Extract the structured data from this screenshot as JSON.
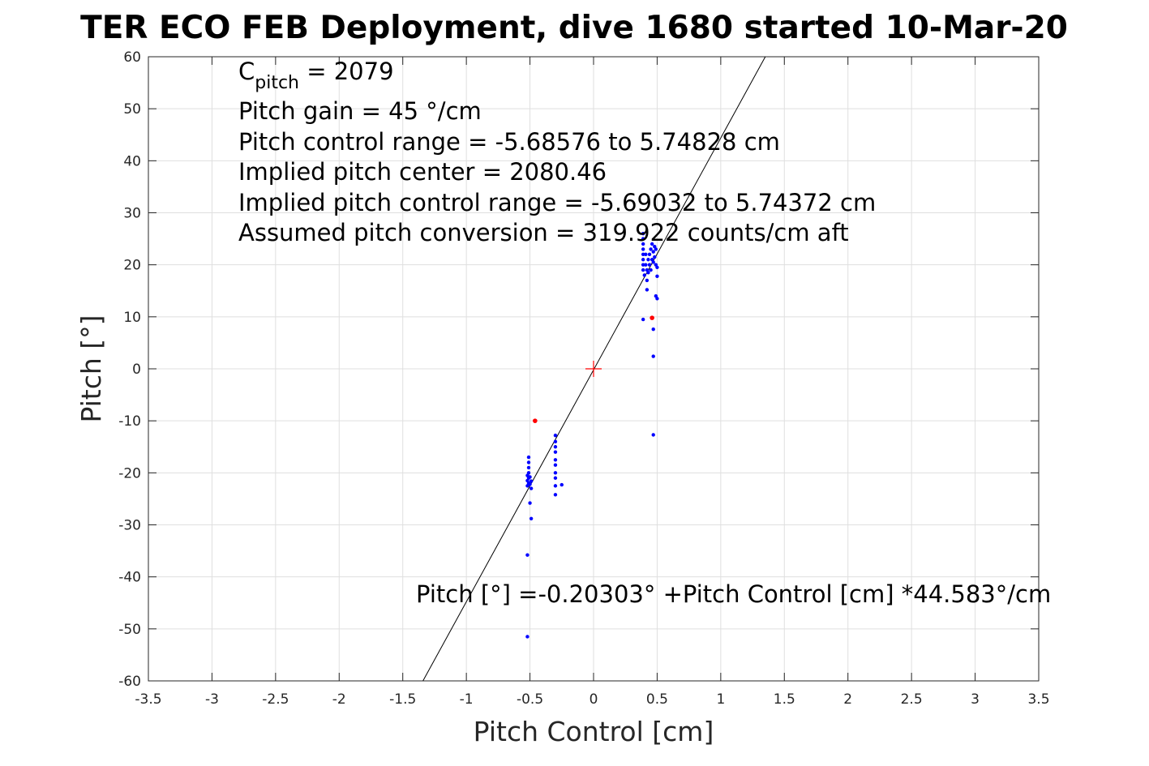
{
  "chart_data": {
    "type": "scatter",
    "title": "TER ECO FEB Deployment, dive 1680 started 10-Mar-20",
    "xlabel": "Pitch Control [cm]",
    "ylabel": "Pitch [°]",
    "xlim": [
      -3.5,
      3.5
    ],
    "ylim": [
      -60,
      60
    ],
    "xticks": [
      -3.5,
      -3,
      -2.5,
      -2,
      -1.5,
      -1,
      -0.5,
      0,
      0.5,
      1,
      1.5,
      2,
      2.5,
      3,
      3.5
    ],
    "yticks": [
      60,
      50,
      40,
      30,
      20,
      10,
      0,
      -10,
      -20,
      -30,
      -40,
      -50,
      -60
    ],
    "grid": true,
    "annotations": {
      "cpitch_main": "C",
      "cpitch_sub": "pitch",
      "cpitch_value": " = 2079",
      "gain": "Pitch gain = 45 °/cm",
      "control_range": "Pitch control range = -5.68576 to 5.74828 cm",
      "implied_center": "Implied pitch center = 2080.46",
      "implied_range": "Implied pitch control range = -5.69032 to 5.74372 cm",
      "conversion": "Assumed pitch conversion = 319.922 counts/cm aft",
      "fit_equation": "Pitch [°] =-0.20303° +Pitch Control [cm] *44.583°/cm"
    },
    "fit_line": {
      "intercept": -0.20303,
      "slope": 44.583,
      "color": "#000000"
    },
    "center_marker": {
      "x": 0,
      "y": 0,
      "color": "#ff0000",
      "marker": "plus"
    },
    "series": [
      {
        "color": "#0000ff",
        "points": [
          [
            0.39,
            26
          ],
          [
            0.39,
            25
          ],
          [
            0.39,
            24
          ],
          [
            0.39,
            23
          ],
          [
            0.39,
            22
          ],
          [
            0.39,
            21
          ],
          [
            0.39,
            20
          ],
          [
            0.39,
            19
          ],
          [
            0.4,
            18
          ],
          [
            0.41,
            22
          ],
          [
            0.41,
            20
          ],
          [
            0.42,
            19
          ],
          [
            0.42,
            17
          ],
          [
            0.42,
            15.2
          ],
          [
            0.43,
            21
          ],
          [
            0.43,
            18.5
          ],
          [
            0.44,
            20
          ],
          [
            0.44,
            22
          ],
          [
            0.45,
            23
          ],
          [
            0.45,
            19
          ],
          [
            0.46,
            21
          ],
          [
            0.46,
            24
          ],
          [
            0.47,
            22.5
          ],
          [
            0.47,
            20.5
          ],
          [
            0.48,
            23.5
          ],
          [
            0.48,
            21.5
          ],
          [
            0.49,
            23
          ],
          [
            0.49,
            20
          ],
          [
            0.5,
            19.5
          ],
          [
            0.5,
            17.8
          ],
          [
            0.49,
            14
          ],
          [
            0.5,
            13.5
          ],
          [
            0.39,
            9.5
          ],
          [
            0.47,
            7.6
          ],
          [
            0.47,
            2.4
          ],
          [
            0.47,
            -12.7
          ],
          [
            -0.51,
            -17
          ],
          [
            -0.51,
            -18
          ],
          [
            -0.51,
            -19
          ],
          [
            -0.51,
            -20
          ],
          [
            -0.51,
            -21
          ],
          [
            -0.51,
            -22
          ],
          [
            -0.52,
            -20.5
          ],
          [
            -0.52,
            -21.5
          ],
          [
            -0.52,
            -22.5
          ],
          [
            -0.5,
            -20.8
          ],
          [
            -0.5,
            -22.2
          ],
          [
            -0.49,
            -21.6
          ],
          [
            -0.49,
            -23
          ],
          [
            -0.5,
            -25.8
          ],
          [
            -0.49,
            -28.8
          ],
          [
            -0.52,
            -35.8
          ],
          [
            -0.52,
            -51.5
          ],
          [
            -0.3,
            -12.8
          ],
          [
            -0.3,
            -14
          ],
          [
            -0.3,
            -15
          ],
          [
            -0.3,
            -16
          ],
          [
            -0.3,
            -17.5
          ],
          [
            -0.3,
            -18.5
          ],
          [
            -0.3,
            -20
          ],
          [
            -0.3,
            -21
          ],
          [
            -0.3,
            -22.5
          ],
          [
            -0.3,
            -24.2
          ],
          [
            -0.25,
            -22.3
          ]
        ]
      },
      {
        "color": "#ff0000",
        "points": [
          [
            -0.46,
            -10
          ],
          [
            0.46,
            9.8
          ]
        ]
      }
    ]
  }
}
